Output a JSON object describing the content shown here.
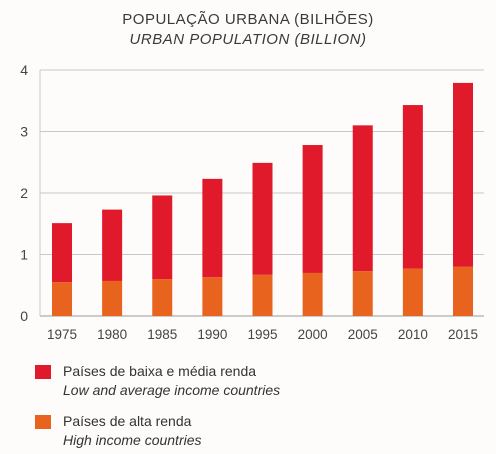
{
  "chart_data": {
    "type": "bar",
    "stacked": true,
    "title": "POPULAÇÃO URBANA (BILHÕES)",
    "subtitle": "URBAN POPULATION (BILLION)",
    "categories": [
      "1975",
      "1980",
      "1985",
      "1990",
      "1995",
      "2000",
      "2005",
      "2010",
      "2015"
    ],
    "series": [
      {
        "name": "Países de alta renda",
        "name_en": "High income countries",
        "color": "#e8641e",
        "values": [
          0.55,
          0.57,
          0.6,
          0.63,
          0.67,
          0.7,
          0.73,
          0.77,
          0.8
        ]
      },
      {
        "name": "Países de baixa e média renda",
        "name_en": "Low and average income countries",
        "color": "#e01a2b",
        "values": [
          0.96,
          1.16,
          1.36,
          1.6,
          1.82,
          2.08,
          2.37,
          2.66,
          2.99
        ]
      }
    ],
    "ylim": [
      0,
      4
    ],
    "yticks": [
      "0",
      "1",
      "2",
      "3",
      "4"
    ],
    "grid": true,
    "legend_position": "bottom"
  }
}
